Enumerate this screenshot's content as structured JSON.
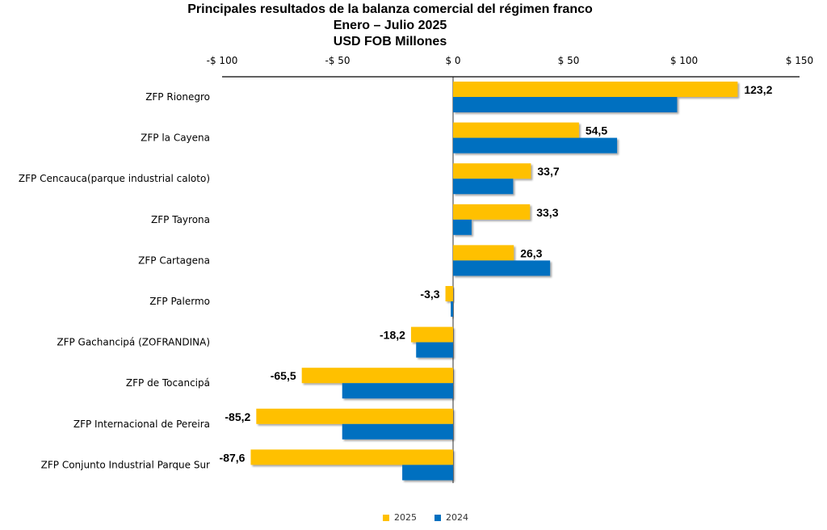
{
  "titles": {
    "line1": "Principales resultados de la balanza comercial del régimen franco",
    "line2": "Enero – Julio 2025",
    "line3": "USD FOB Millones"
  },
  "colors": {
    "s2025": "#FFC000",
    "s2024": "#0070C0"
  },
  "chart_data": {
    "type": "bar",
    "orientation": "horizontal",
    "title": "Principales resultados de la balanza comercial del régimen franco",
    "subtitle": "Enero – Julio 2025",
    "unit": "USD FOB Millones",
    "xlim": [
      -100,
      150
    ],
    "xticks": [
      -100,
      -50,
      0,
      50,
      100,
      150
    ],
    "xtick_labels": [
      "-$ 100",
      "-$ 50",
      "$ 0",
      "$ 50",
      "$ 100",
      "$ 150"
    ],
    "legend_position": "bottom",
    "categories": [
      "ZFP Rionegro",
      "ZFP la Cayena",
      "ZFP Cencauca(parque industrial caloto)",
      "ZFP Tayrona",
      "ZFP Cartagena",
      "ZFP Palermo",
      "ZFP Gachancipá (ZOFRANDINA)",
      "ZFP de Tocancipá",
      "ZFP Internacional de Pereira",
      "ZFP Conjunto Industrial Parque Sur"
    ],
    "series": [
      {
        "name": "2025",
        "values": [
          123.2,
          54.5,
          33.7,
          33.3,
          26.3,
          -3.3,
          -18.2,
          -65.5,
          -85.2,
          -87.6
        ],
        "labels": [
          "123,2",
          "54,5",
          "33,7",
          "33,3",
          "26,3",
          "-3,3",
          "-18,2",
          "-65,5",
          "-85,2",
          "-87,6"
        ]
      },
      {
        "name": "2024",
        "values": [
          97,
          71,
          26,
          8,
          42,
          -1,
          -16,
          -48,
          -48,
          -22
        ]
      }
    ]
  }
}
